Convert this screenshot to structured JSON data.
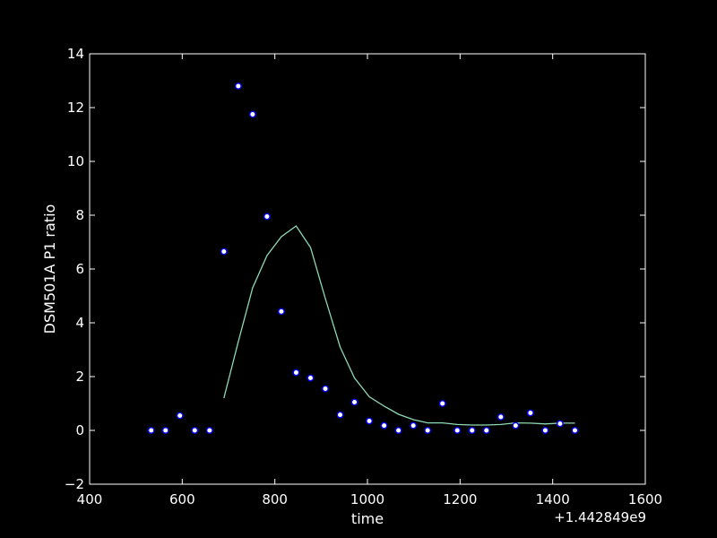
{
  "chart_data": {
    "type": "scatter",
    "title": "",
    "xlabel": "time",
    "ylabel": "DSM501A P1 ratio",
    "x_offset_label": "+1.442849e9",
    "xlim": [
      400,
      1600
    ],
    "ylim": [
      -2,
      14
    ],
    "xticks": [
      400,
      600,
      800,
      1000,
      1200,
      1400,
      1600
    ],
    "yticks": [
      -2,
      0,
      2,
      4,
      6,
      8,
      10,
      12,
      14
    ],
    "xtick_labels": [
      "400",
      "600",
      "800",
      "1000",
      "1200",
      "1400",
      "1600"
    ],
    "ytick_labels": [
      "−2",
      "0",
      "2",
      "4",
      "6",
      "8",
      "10",
      "12",
      "14"
    ],
    "grid": false,
    "background_color": "#000000",
    "axes_color": "#ffffff",
    "series": [
      {
        "type": "scatter",
        "marker_fill": "#ffffff",
        "marker_edge": "#0000ff",
        "x": [
          533,
          564,
          595,
          627,
          659,
          690,
          721,
          752,
          783,
          814,
          846,
          877,
          909,
          941,
          972,
          1004,
          1036,
          1067,
          1099,
          1130,
          1162,
          1194,
          1226,
          1257,
          1288,
          1320,
          1352,
          1384,
          1416,
          1448
        ],
        "y": [
          0,
          0,
          0.55,
          0,
          0,
          6.65,
          12.8,
          11.75,
          7.95,
          4.42,
          2.15,
          1.95,
          1.55,
          0.58,
          1.05,
          0.35,
          0.18,
          0,
          0.18,
          0,
          1.0,
          0,
          0,
          0,
          0.5,
          0.18,
          0.65,
          0,
          0.25,
          0
        ]
      },
      {
        "type": "line",
        "color": "#8fd9b6",
        "x": [
          690,
          721,
          752,
          783,
          814,
          846,
          877,
          909,
          941,
          972,
          1004,
          1036,
          1067,
          1099,
          1130,
          1162,
          1194,
          1226,
          1257,
          1288,
          1320,
          1352,
          1384,
          1416,
          1448
        ],
        "y": [
          1.2,
          3.3,
          5.3,
          6.5,
          7.2,
          7.6,
          6.8,
          4.9,
          3.1,
          1.95,
          1.25,
          0.9,
          0.6,
          0.4,
          0.28,
          0.28,
          0.22,
          0.2,
          0.2,
          0.22,
          0.28,
          0.27,
          0.24,
          0.27,
          0.27
        ]
      }
    ]
  }
}
